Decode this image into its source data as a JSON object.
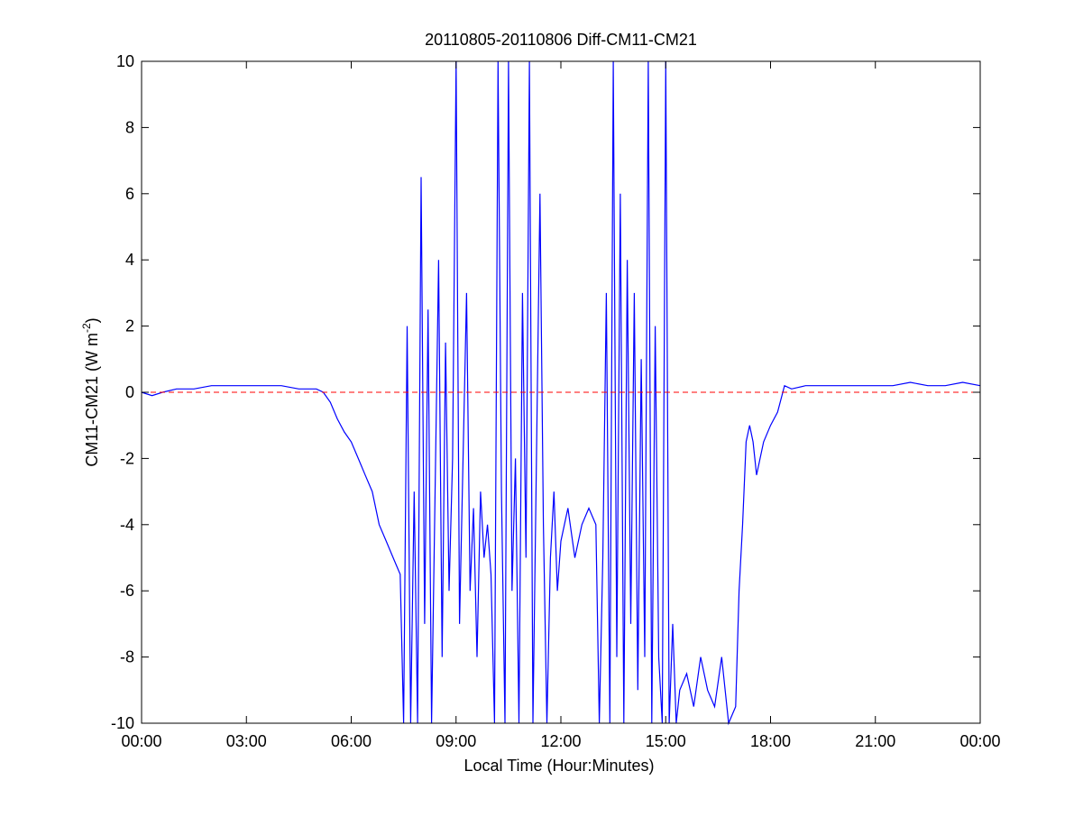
{
  "figure": {
    "title": "20110805-20110806 Diff-CM11-CM21",
    "xlabel": "Local Time (Hour:Minutes)",
    "ylabel_main": "CM11-CM21 (W m",
    "ylabel_sup": "-2",
    "ylabel_close": ")"
  },
  "chart_data": {
    "type": "line",
    "title": "20110805-20110806 Diff-CM11-CM21",
    "xlabel": "Local Time (Hour:Minutes)",
    "ylabel": "CM11-CM21 (W m-2)",
    "x_unit": "hours since 00:00 local time",
    "xlim": [
      0,
      24
    ],
    "ylim": [
      -10,
      10
    ],
    "x_ticks": [
      0,
      3,
      6,
      9,
      12,
      15,
      18,
      21,
      24
    ],
    "x_tick_labels": [
      "00:00",
      "03:00",
      "06:00",
      "09:00",
      "12:00",
      "15:00",
      "18:00",
      "21:00",
      "00:00"
    ],
    "y_ticks": [
      -10,
      -8,
      -6,
      -4,
      -2,
      0,
      2,
      4,
      6,
      8,
      10
    ],
    "y_tick_labels": [
      "-10",
      "-8",
      "-6",
      "-4",
      "-2",
      "0",
      "2",
      "4",
      "6",
      "8",
      "10"
    ],
    "grid": false,
    "series": [
      {
        "color": "#0000ff",
        "style": "solid",
        "x": [
          0.0,
          0.3,
          0.6,
          1.0,
          1.5,
          2.0,
          2.5,
          3.0,
          3.5,
          4.0,
          4.5,
          5.0,
          5.2,
          5.4,
          5.6,
          5.8,
          6.0,
          6.2,
          6.4,
          6.6,
          6.8,
          7.0,
          7.2,
          7.4,
          7.5,
          7.6,
          7.7,
          7.8,
          7.9,
          8.0,
          8.1,
          8.2,
          8.3,
          8.4,
          8.5,
          8.6,
          8.7,
          8.8,
          8.9,
          9.0,
          9.1,
          9.2,
          9.3,
          9.4,
          9.5,
          9.6,
          9.7,
          9.8,
          9.9,
          10.0,
          10.1,
          10.2,
          10.3,
          10.4,
          10.5,
          10.6,
          10.7,
          10.8,
          10.9,
          11.0,
          11.1,
          11.2,
          11.3,
          11.4,
          11.5,
          11.6,
          11.7,
          11.8,
          11.9,
          12.0,
          12.2,
          12.4,
          12.6,
          12.8,
          13.0,
          13.1,
          13.2,
          13.3,
          13.4,
          13.5,
          13.6,
          13.7,
          13.8,
          13.9,
          14.0,
          14.1,
          14.2,
          14.3,
          14.4,
          14.5,
          14.6,
          14.7,
          14.8,
          14.9,
          15.0,
          15.1,
          15.2,
          15.3,
          15.4,
          15.6,
          15.8,
          16.0,
          16.2,
          16.4,
          16.6,
          16.8,
          17.0,
          17.1,
          17.2,
          17.3,
          17.4,
          17.5,
          17.6,
          17.8,
          18.0,
          18.2,
          18.4,
          18.6,
          19.0,
          19.5,
          20.0,
          20.5,
          21.0,
          21.5,
          22.0,
          22.5,
          23.0,
          23.5,
          24.0
        ],
        "y": [
          0.0,
          -0.1,
          0.0,
          0.1,
          0.1,
          0.2,
          0.2,
          0.2,
          0.2,
          0.2,
          0.1,
          0.1,
          0.0,
          -0.3,
          -0.8,
          -1.2,
          -1.5,
          -2.0,
          -2.5,
          -3.0,
          -4.0,
          -4.5,
          -5.0,
          -5.5,
          -10.0,
          2.0,
          -10.0,
          -3.0,
          -10.0,
          6.5,
          -7.0,
          2.5,
          -10.0,
          -3.0,
          4.0,
          -8.0,
          1.5,
          -6.0,
          -2.0,
          10.0,
          -7.0,
          -2.0,
          3.0,
          -6.0,
          -3.5,
          -8.0,
          -3.0,
          -5.0,
          -4.0,
          -5.5,
          -10.0,
          10.0,
          -3.0,
          -10.0,
          10.0,
          -6.0,
          -2.0,
          -10.0,
          3.0,
          -5.0,
          10.0,
          -10.0,
          -2.0,
          6.0,
          -4.0,
          -10.0,
          -5.0,
          -3.0,
          -6.0,
          -4.5,
          -3.5,
          -5.0,
          -4.0,
          -3.5,
          -4.0,
          -10.0,
          -5.0,
          3.0,
          -10.0,
          10.0,
          -8.0,
          6.0,
          -10.0,
          4.0,
          -7.0,
          3.0,
          -9.0,
          1.0,
          -8.0,
          10.0,
          -10.0,
          2.0,
          -8.0,
          -10.0,
          10.0,
          -10.0,
          -7.0,
          -10.0,
          -9.0,
          -8.5,
          -9.5,
          -8.0,
          -9.0,
          -9.5,
          -8.0,
          -10.0,
          -9.5,
          -6.0,
          -4.0,
          -1.5,
          -1.0,
          -1.5,
          -2.5,
          -1.5,
          -1.0,
          -0.6,
          0.2,
          0.1,
          0.2,
          0.2,
          0.2,
          0.2,
          0.2,
          0.2,
          0.3,
          0.2,
          0.2,
          0.3,
          0.2
        ]
      },
      {
        "color": "#ff0000",
        "style": "dashed",
        "x": [
          0,
          24
        ],
        "y": [
          0,
          0
        ]
      }
    ]
  }
}
